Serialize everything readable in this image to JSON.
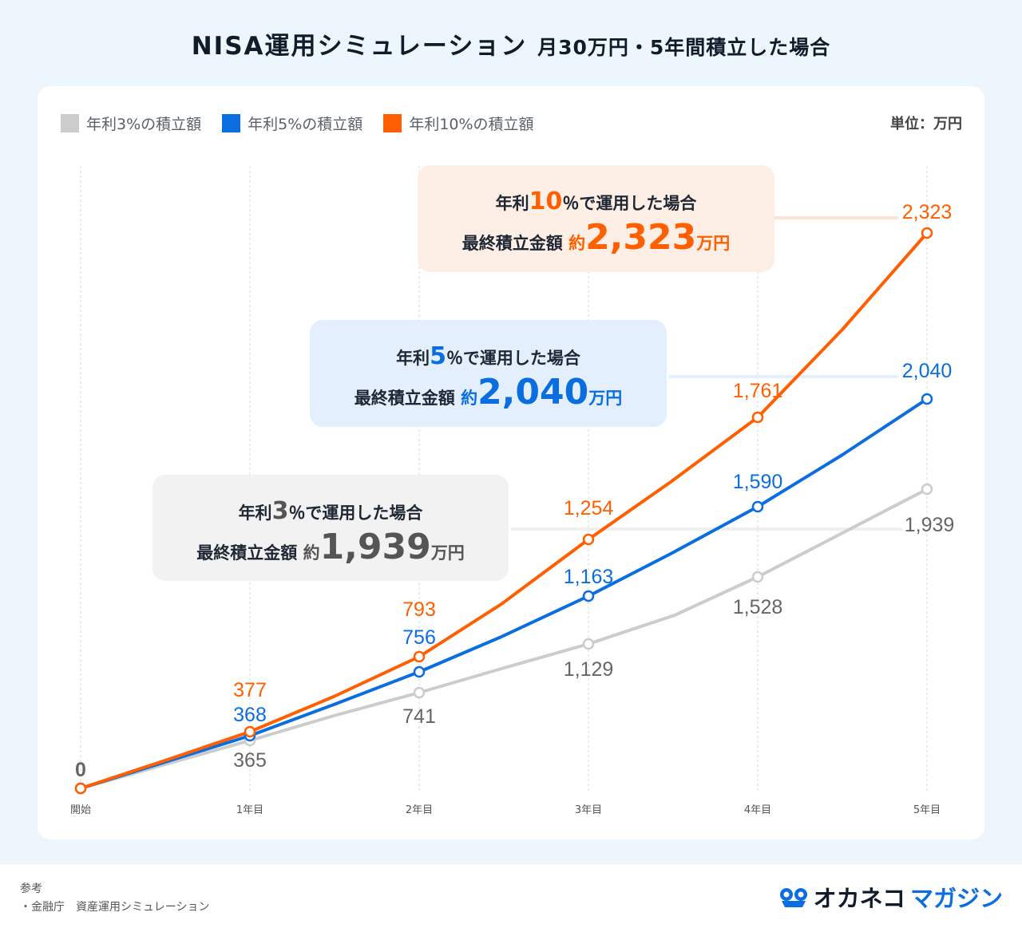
{
  "title": {
    "main": "NISA運用シミュレーション",
    "sub": "月30万円・5年間積立した場合"
  },
  "unit_label": "単位：万円",
  "colors": {
    "rate3": "#cccccc",
    "rate5": "#0a6ee0",
    "rate10": "#ff5f00"
  },
  "callouts": [
    {
      "key": "rate10",
      "prefix": "年利",
      "pct": "10",
      "suffix": "％で運用した場合",
      "label": "最終積立金額",
      "approx": "約",
      "amount": "2,323",
      "unit": "万円"
    },
    {
      "key": "rate5",
      "prefix": "年利",
      "pct": "5",
      "suffix": "％で運用した場合",
      "label": "最終積立金額",
      "approx": "約",
      "amount": "2,040",
      "unit": "万円"
    },
    {
      "key": "rate3",
      "prefix": "年利",
      "pct": "3",
      "suffix": "％で運用した場合",
      "label": "最終積立金額",
      "approx": "約",
      "amount": "1,939",
      "unit": "万円"
    }
  ],
  "chart_data": {
    "type": "line",
    "categories": [
      "開始",
      "1年目",
      "2年目",
      "3年目",
      "4年目",
      "5年目"
    ],
    "series": [
      {
        "name": "年利3%の積立額",
        "color": "#cccccc",
        "values": [
          0,
          365,
          741,
          1129,
          1528,
          1939
        ],
        "labels": [
          "0",
          "365",
          "741",
          "1,129",
          "1,528",
          "1,939"
        ]
      },
      {
        "name": "年利5%の積立額",
        "color": "#0a6ee0",
        "values": [
          0,
          368,
          756,
          1163,
          1590,
          2040
        ],
        "labels": [
          "",
          "368",
          "756",
          "1,163",
          "1,590",
          "2,040"
        ]
      },
      {
        "name": "年利10%の積立額",
        "color": "#ff5f00",
        "values": [
          0,
          377,
          793,
          1254,
          1761,
          2323
        ],
        "labels": [
          "",
          "377",
          "793",
          "1,254",
          "1,761",
          "2,323"
        ]
      }
    ],
    "legend": "top-left",
    "grid": "vertical dashed"
  },
  "footer": {
    "ref_title": "参考",
    "ref_item": "・金融庁　資産運用シミュレーション",
    "logo_dark": "オカネコ",
    "logo_blue": "マガジン"
  }
}
